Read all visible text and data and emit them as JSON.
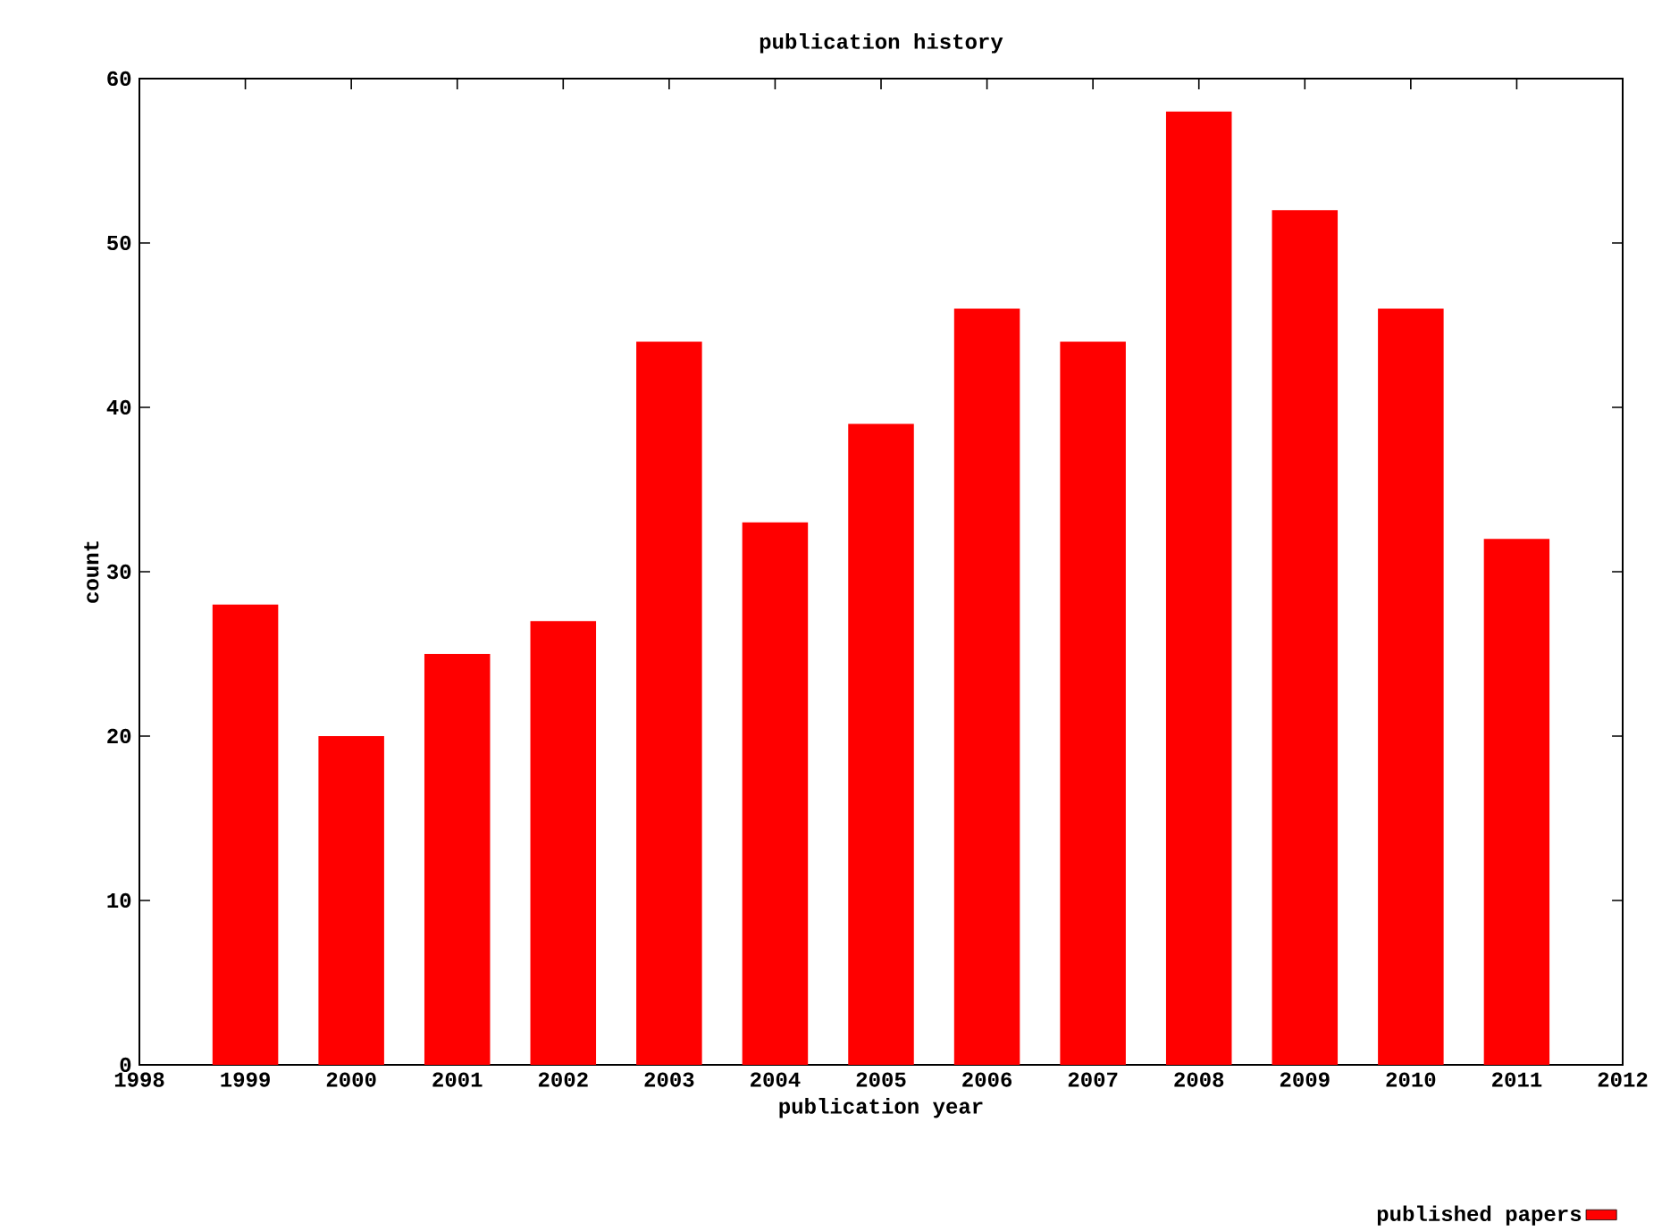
{
  "chart_data": {
    "type": "bar",
    "title": "publication history",
    "xlabel": "publication year",
    "ylabel": "count",
    "x": [
      1999,
      2000,
      2001,
      2002,
      2003,
      2004,
      2005,
      2006,
      2007,
      2008,
      2009,
      2010,
      2011
    ],
    "series": [
      {
        "name": "published papers",
        "color": "#ff0000",
        "values": [
          28,
          20,
          25,
          27,
          44,
          33,
          39,
          46,
          44,
          58,
          52,
          46,
          32
        ]
      }
    ],
    "xlim": [
      1998,
      2012
    ],
    "xticks": [
      1998,
      1999,
      2000,
      2001,
      2002,
      2003,
      2004,
      2005,
      2006,
      2007,
      2008,
      2009,
      2010,
      2011,
      2012
    ],
    "ylim": [
      0,
      60
    ],
    "yticks": [
      0,
      10,
      20,
      30,
      40,
      50,
      60
    ],
    "grid": false,
    "legend": "bottom right"
  }
}
